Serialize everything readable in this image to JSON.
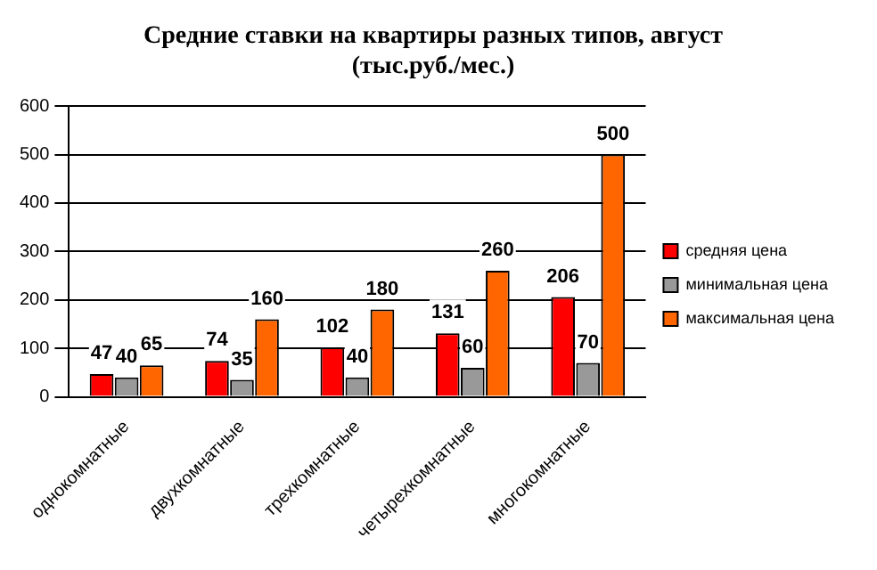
{
  "chart_data": {
    "type": "bar",
    "title": "Средние ставки на квартиры разных типов, август\n(тыс.руб./мес.)",
    "categories": [
      "однокомнатные",
      "двухкомнатные",
      "трехкомнатные",
      "четырехкомнатные",
      "многокомнатные"
    ],
    "series": [
      {
        "name": "средняя цена",
        "color": "#ff0000",
        "values": [
          47,
          74,
          102,
          131,
          206
        ]
      },
      {
        "name": "минимальная цена",
        "color": "#999999",
        "values": [
          40,
          35,
          40,
          60,
          70
        ]
      },
      {
        "name": "максимальная цена",
        "color": "#ff6600",
        "values": [
          65,
          160,
          180,
          260,
          500
        ]
      }
    ],
    "ylim": [
      0,
      600
    ],
    "yticks": [
      0,
      100,
      200,
      300,
      400,
      500,
      600
    ],
    "grid": "y",
    "legend": "right",
    "data_labels": true
  }
}
